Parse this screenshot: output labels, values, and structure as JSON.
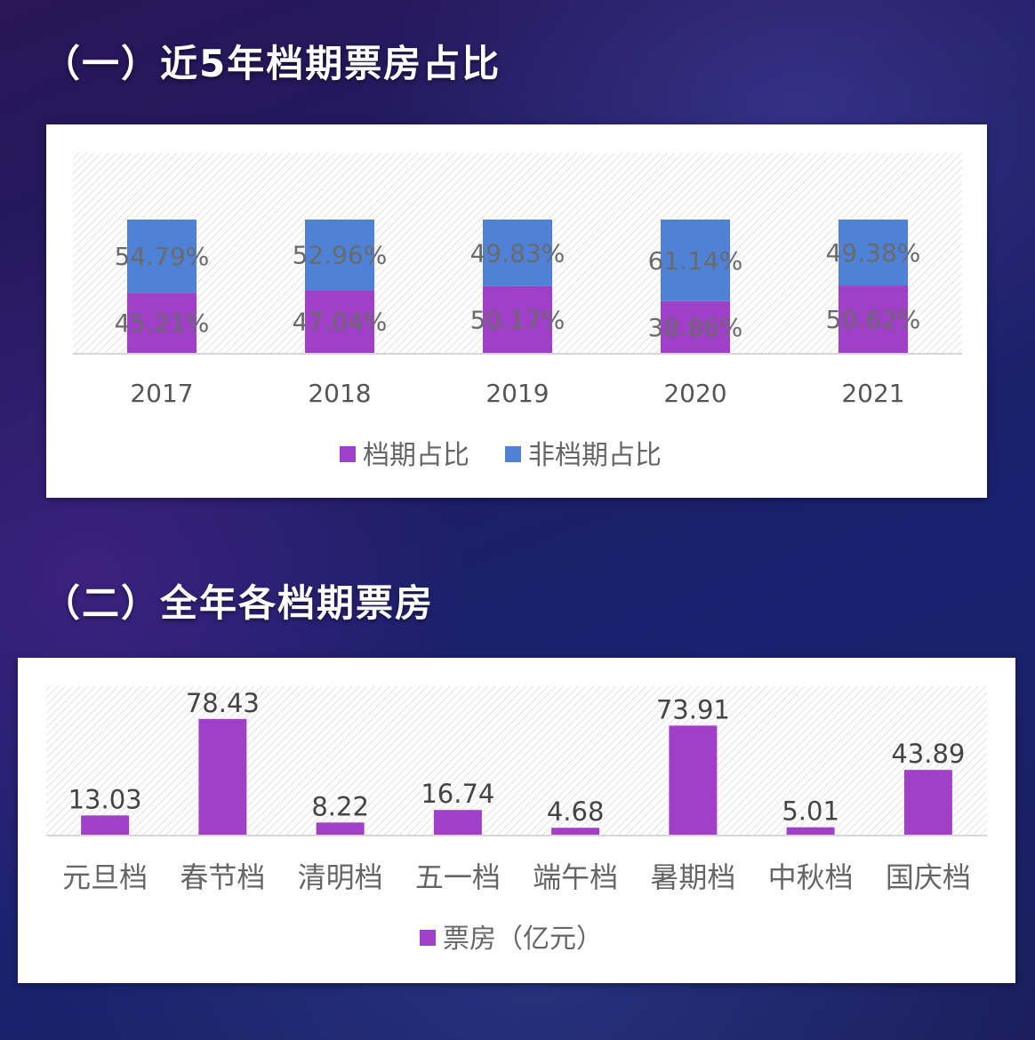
{
  "section1": {
    "title": "（一）近5年档期票房占比"
  },
  "section2": {
    "title": "（二）全年各档期票房"
  },
  "chart_data": [
    {
      "type": "bar",
      "stacked": true,
      "percent": true,
      "categories": [
        "2017",
        "2018",
        "2019",
        "2020",
        "2021"
      ],
      "series": [
        {
          "name": "档期占比",
          "color": "#a040c8",
          "values": [
            45.21,
            47.04,
            50.17,
            38.86,
            50.62
          ],
          "labels": [
            "45.21%",
            "47.04%",
            "50.17%",
            "38.86%",
            "50.62%"
          ]
        },
        {
          "name": "非档期占比",
          "color": "#4f82d6",
          "values": [
            54.79,
            52.96,
            49.83,
            61.14,
            49.38
          ],
          "labels": [
            "54.79%",
            "52.96%",
            "49.83%",
            "61.14%",
            "49.38%"
          ]
        }
      ],
      "legend": "bottom",
      "grid": false
    },
    {
      "type": "bar",
      "categories": [
        "元旦档",
        "春节档",
        "清明档",
        "五一档",
        "端午档",
        "暑期档",
        "中秋档",
        "国庆档"
      ],
      "series": [
        {
          "name": "票房（亿元）",
          "color": "#a040c8",
          "values": [
            13.03,
            78.43,
            8.22,
            16.74,
            4.68,
            73.91,
            5.01,
            43.89
          ],
          "labels": [
            "13.03",
            "78.43",
            "8.22",
            "16.74",
            "4.68",
            "73.91",
            "5.01",
            "43.89"
          ]
        }
      ],
      "legend": "bottom",
      "grid": false
    }
  ]
}
